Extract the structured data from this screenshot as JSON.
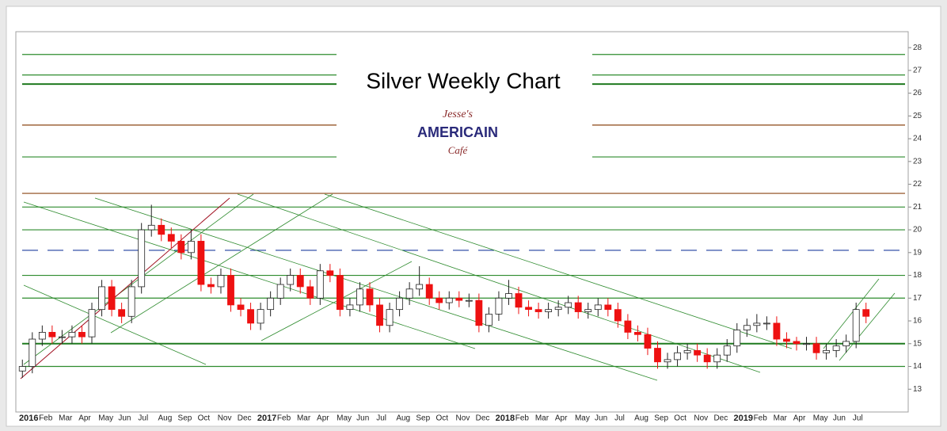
{
  "chart_data": {
    "type": "candlestick",
    "title": "Silver Weekly Chart",
    "logo_text": [
      "Jesse's",
      "AMERICAIN",
      "Café"
    ],
    "categories": [
      "2016",
      null,
      "Feb",
      null,
      "Mar",
      null,
      "Apr",
      null,
      "May",
      null,
      "Jun",
      null,
      "Jul",
      null,
      "Aug",
      null,
      "Sep",
      null,
      "Oct",
      null,
      "Nov",
      null,
      "Dec",
      null,
      "2017",
      null,
      "Feb",
      null,
      "Mar",
      null,
      "Apr",
      null,
      "May",
      null,
      "Jun",
      null,
      "Jul",
      null,
      "Aug",
      null,
      "Sep",
      null,
      "Oct",
      null,
      "Nov",
      null,
      "Dec",
      null,
      "2018",
      null,
      "Feb",
      null,
      "Mar",
      null,
      "Apr",
      null,
      "May",
      null,
      "Jun",
      null,
      "Jul",
      null,
      "Aug",
      null,
      "Sep",
      null,
      "Oct",
      null,
      "Nov",
      null,
      "Dec",
      null,
      "2019",
      null,
      "Feb",
      null,
      "Mar",
      null,
      "Apr",
      null,
      "May",
      null,
      "Jun",
      null,
      "Jul",
      null
    ],
    "open": [
      13.8,
      14.0,
      15.2,
      15.5,
      15.3,
      15.3,
      15.5,
      15.3,
      16.5,
      17.5,
      16.5,
      16.2,
      17.5,
      20.0,
      20.2,
      19.8,
      19.5,
      19.0,
      19.5,
      17.6,
      17.5,
      18.0,
      16.7,
      16.5,
      15.9,
      16.5,
      17.0,
      17.6,
      18.0,
      17.5,
      17.0,
      18.2,
      18.0,
      16.5,
      16.7,
      17.4,
      16.7,
      15.8,
      16.5,
      17.0,
      17.4,
      17.6,
      17.0,
      16.8,
      17.0,
      16.9,
      16.9,
      15.8,
      16.3,
      17.0,
      17.2,
      16.6,
      16.5,
      16.4,
      16.5,
      16.6,
      16.8,
      16.4,
      16.5,
      16.7,
      16.5,
      16.0,
      15.5,
      15.4,
      14.8,
      14.2,
      14.3,
      14.6,
      14.7,
      14.5,
      14.2,
      14.5,
      14.9,
      15.6,
      15.8,
      15.9,
      15.9,
      15.2,
      15.1,
      15.0,
      15.0,
      14.6,
      14.7,
      14.9,
      15.1,
      16.5
    ],
    "high": [
      14.3,
      15.5,
      15.8,
      15.8,
      15.6,
      15.8,
      15.8,
      16.8,
      17.8,
      17.8,
      16.8,
      17.8,
      20.3,
      21.1,
      20.5,
      20.1,
      19.8,
      20.0,
      19.8,
      17.9,
      18.3,
      18.3,
      17.0,
      16.8,
      16.8,
      17.3,
      17.9,
      18.3,
      18.3,
      17.8,
      18.5,
      18.5,
      18.3,
      17.0,
      17.7,
      17.7,
      17.0,
      16.8,
      17.3,
      17.7,
      18.4,
      17.9,
      17.3,
      17.3,
      17.3,
      17.2,
      17.2,
      16.6,
      17.3,
      17.8,
      17.5,
      16.9,
      16.8,
      16.8,
      16.9,
      17.1,
      17.1,
      16.8,
      17.0,
      17.0,
      16.8,
      16.3,
      15.8,
      15.7,
      15.1,
      14.6,
      14.9,
      15.0,
      15.0,
      14.8,
      14.8,
      15.2,
      15.9,
      16.1,
      16.3,
      16.2,
      16.2,
      15.5,
      15.3,
      15.3,
      15.3,
      15.0,
      15.2,
      15.4,
      16.8,
      16.8
    ],
    "low": [
      13.5,
      13.7,
      14.9,
      15.0,
      15.0,
      15.0,
      15.0,
      15.0,
      16.2,
      16.2,
      15.9,
      15.9,
      17.2,
      19.7,
      19.5,
      19.2,
      18.7,
      18.7,
      17.3,
      17.2,
      17.2,
      16.4,
      16.2,
      15.6,
      15.6,
      16.2,
      16.7,
      17.3,
      17.2,
      16.7,
      16.7,
      17.7,
      16.2,
      16.2,
      16.4,
      16.4,
      15.5,
      15.5,
      16.2,
      16.7,
      17.1,
      16.7,
      16.5,
      16.5,
      16.6,
      16.6,
      15.5,
      15.5,
      16.0,
      16.7,
      16.3,
      16.2,
      16.1,
      16.1,
      16.2,
      16.3,
      16.1,
      16.1,
      16.2,
      16.2,
      15.7,
      15.2,
      15.1,
      14.5,
      13.9,
      13.9,
      14.0,
      14.3,
      14.2,
      13.9,
      13.9,
      14.2,
      14.6,
      15.3,
      15.5,
      15.6,
      14.9,
      14.8,
      14.7,
      14.7,
      14.3,
      14.3,
      14.4,
      14.6,
      14.8,
      15.9
    ],
    "close": [
      14.0,
      15.2,
      15.5,
      15.3,
      15.3,
      15.5,
      15.3,
      16.5,
      17.5,
      16.5,
      16.2,
      17.5,
      20.0,
      20.2,
      19.8,
      19.5,
      19.0,
      19.5,
      17.6,
      17.5,
      18.0,
      16.7,
      16.5,
      15.9,
      16.5,
      17.0,
      17.6,
      18.0,
      17.5,
      17.0,
      18.2,
      18.0,
      16.5,
      16.7,
      17.4,
      16.7,
      15.8,
      16.5,
      17.0,
      17.4,
      17.6,
      17.0,
      16.8,
      17.0,
      16.9,
      16.9,
      15.8,
      16.3,
      17.0,
      17.2,
      16.6,
      16.5,
      16.4,
      16.5,
      16.6,
      16.8,
      16.4,
      16.5,
      16.7,
      16.5,
      16.0,
      15.5,
      15.4,
      14.8,
      14.2,
      14.3,
      14.6,
      14.7,
      14.5,
      14.2,
      14.5,
      14.9,
      15.6,
      15.8,
      15.9,
      15.9,
      15.2,
      15.1,
      15.0,
      15.0,
      14.6,
      14.7,
      14.9,
      15.1,
      16.5,
      16.2
    ],
    "up_color": "#ffffff",
    "down_color": "#ee1111",
    "levels": [
      {
        "value": 27.7,
        "color": "#2e8b2e"
      },
      {
        "value": 26.8,
        "color": "#2e8b2e"
      },
      {
        "value": 26.4,
        "color": "#1f7a1f"
      },
      {
        "value": 24.6,
        "color": "#8b4513"
      },
      {
        "value": 23.2,
        "color": "#2e8b2e"
      },
      {
        "value": 21.6,
        "color": "#8b4513"
      },
      {
        "value": 21.0,
        "color": "#2e8b2e"
      },
      {
        "value": 20.0,
        "color": "#2e8b2e"
      },
      {
        "value": 19.1,
        "color": "#1f3f9f"
      },
      {
        "value": 18.0,
        "color": "#2e8b2e"
      },
      {
        "value": 17.0,
        "color": "#2e8b2e"
      },
      {
        "value": 15.0,
        "color": "#1f7a1f"
      },
      {
        "value": 14.0,
        "color": "#2e8b2e"
      }
    ],
    "ylim": [
      12,
      28.7
    ],
    "yticks": [
      13,
      14,
      15,
      16,
      17,
      18,
      19,
      20,
      21,
      22,
      23,
      24,
      25,
      26,
      27,
      28
    ]
  }
}
